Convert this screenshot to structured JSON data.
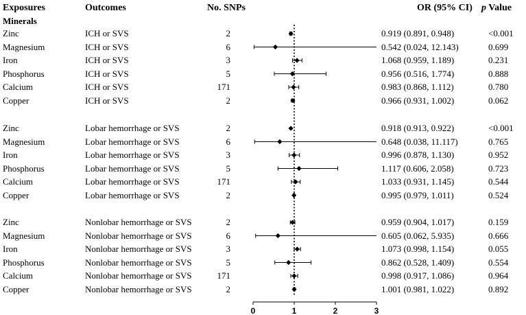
{
  "headers": {
    "exposures": "Exposures",
    "outcomes": "Outcomes",
    "snps": "No. SNPs",
    "or": "OR (95% CI)",
    "p_italic": "p",
    "p_rest": " Value"
  },
  "group_label": "Minerals",
  "chart_data": {
    "type": "forest",
    "reference_line": 1,
    "xlim": [
      0,
      3
    ],
    "x_ticks": [
      "0",
      "1",
      "2",
      "3"
    ],
    "rows": [
      {
        "exposure": "Zinc",
        "outcome": "ICH or SVS",
        "snps": "2",
        "or": 0.919,
        "lo": 0.891,
        "hi": 0.948,
        "or_text": "0.919 (0.891, 0.948)",
        "p": "<0.001"
      },
      {
        "exposure": "Magnesium",
        "outcome": "ICH or SVS",
        "snps": "6",
        "or": 0.542,
        "lo": 0.024,
        "hi": 12.143,
        "or_text": "0.542 (0.024, 12.143)",
        "p": "0.699"
      },
      {
        "exposure": "Iron",
        "outcome": "ICH or SVS",
        "snps": "3",
        "or": 1.068,
        "lo": 0.959,
        "hi": 1.189,
        "or_text": "1.068 (0.959, 1.189)",
        "p": "0.231"
      },
      {
        "exposure": "Phosphorus",
        "outcome": "ICH or SVS",
        "snps": "5",
        "or": 0.956,
        "lo": 0.516,
        "hi": 1.774,
        "or_text": "0.956 (0.516, 1.774)",
        "p": "0.888"
      },
      {
        "exposure": "Calcium",
        "outcome": "ICH or SVS",
        "snps": "171",
        "or": 0.983,
        "lo": 0.868,
        "hi": 1.112,
        "or_text": "0.983 (0.868, 1.112)",
        "p": "0.780"
      },
      {
        "exposure": "Copper",
        "outcome": "ICH or SVS",
        "snps": "2",
        "or": 0.966,
        "lo": 0.931,
        "hi": 1.002,
        "or_text": "0.966 (0.931, 1.002)",
        "p": "0.062"
      },
      {
        "exposure": "Zinc",
        "outcome": "Lobar hemorrhage or SVS",
        "snps": "2",
        "or": 0.918,
        "lo": 0.913,
        "hi": 0.922,
        "or_text": "0.918 (0.913, 0.922)",
        "p": "<0.001"
      },
      {
        "exposure": "Magnesium",
        "outcome": "Lobar hemorrhage or SVS",
        "snps": "6",
        "or": 0.648,
        "lo": 0.038,
        "hi": 11.117,
        "or_text": "0.648 (0.038, 11.117)",
        "p": "0.765"
      },
      {
        "exposure": "Iron",
        "outcome": "Lobar hemorrhage or SVS",
        "snps": "3",
        "or": 0.996,
        "lo": 0.878,
        "hi": 1.13,
        "or_text": "0.996 (0.878, 1.130)",
        "p": "0.952"
      },
      {
        "exposure": "Phosphorus",
        "outcome": "Lobar hemorrhage or SVS",
        "snps": "5",
        "or": 1.117,
        "lo": 0.606,
        "hi": 2.058,
        "or_text": "1.117 (0.606, 2.058)",
        "p": "0.723"
      },
      {
        "exposure": "Calcium",
        "outcome": "Lobar hemorrhage or SVS",
        "snps": "171",
        "or": 1.033,
        "lo": 0.931,
        "hi": 1.145,
        "or_text": "1.033 (0.931, 1.145)",
        "p": "0.544"
      },
      {
        "exposure": "Copper",
        "outcome": "Lobar hemorrhage or SVS",
        "snps": "2",
        "or": 0.995,
        "lo": 0.979,
        "hi": 1.011,
        "or_text": "0.995 (0.979, 1.011)",
        "p": "0.524"
      },
      {
        "exposure": "Zinc",
        "outcome": "Nonlobar hemorrhage or SVS",
        "snps": "2",
        "or": 0.959,
        "lo": 0.904,
        "hi": 1.017,
        "or_text": "0.959 (0.904, 1.017)",
        "p": "0.159"
      },
      {
        "exposure": "Magnesium",
        "outcome": "Nonlobar hemorrhage or SVS",
        "snps": "6",
        "or": 0.605,
        "lo": 0.062,
        "hi": 5.935,
        "or_text": "0.605 (0.062, 5.935)",
        "p": "0.666"
      },
      {
        "exposure": "Iron",
        "outcome": "Nonlobar hemorrhage or SVS",
        "snps": "3",
        "or": 1.073,
        "lo": 0.998,
        "hi": 1.154,
        "or_text": "1.073 (0.998, 1.154)",
        "p": "0.055"
      },
      {
        "exposure": "Phosphorus",
        "outcome": "Nonlobar hemorrhage or SVS",
        "snps": "5",
        "or": 0.862,
        "lo": 0.528,
        "hi": 1.409,
        "or_text": "0.862 (0.528, 1.409)",
        "p": "0.554"
      },
      {
        "exposure": "Calcium",
        "outcome": "Nonlobar hemorrhage or SVS",
        "snps": "171",
        "or": 0.998,
        "lo": 0.917,
        "hi": 1.086,
        "or_text": "0.998 (0.917, 1.086)",
        "p": "0.964"
      },
      {
        "exposure": "Copper",
        "outcome": "Nonlobar hemorrhage or SVS",
        "snps": "2",
        "or": 1.001,
        "lo": 0.981,
        "hi": 1.022,
        "or_text": "1.001 (0.981, 1.022)",
        "p": "0.892"
      }
    ]
  }
}
